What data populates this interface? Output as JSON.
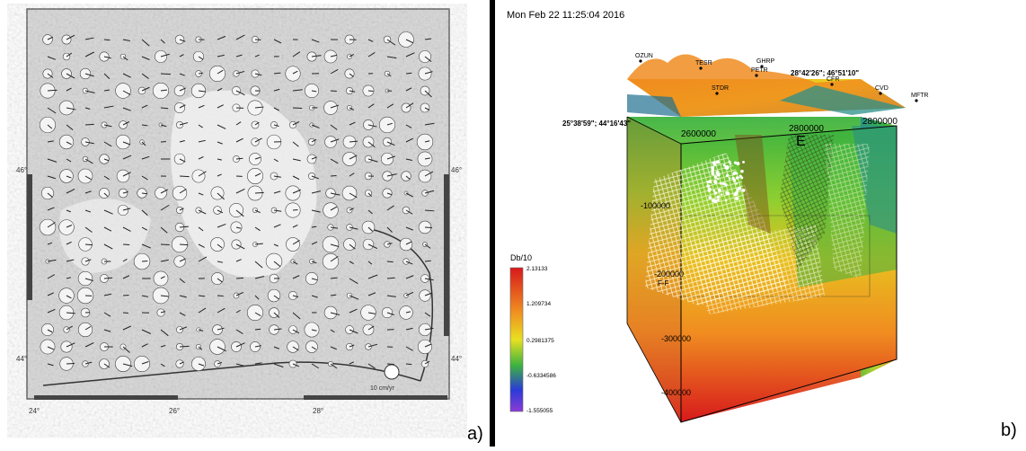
{
  "panel_a": {
    "letter": "a)",
    "lat_labels": [
      "46°",
      "46°",
      "44°",
      "44°"
    ],
    "lon_labels": [
      "24°",
      "26°",
      "28°"
    ],
    "scale_note": "10 cm/yr"
  },
  "panel_b": {
    "letter": "b)",
    "timestamp": "Mon Feb 22 11:25:04 2016",
    "stations": [
      "OZUN",
      "TESR",
      "GHRP",
      "PETR",
      "CFR",
      "CVD",
      "MFTR",
      "STDR"
    ],
    "corner_coord_right": "28°42'26\"; 46°51'10\"",
    "corner_coord_left": "25°38'59\"; 44°16'43\"",
    "axis_x": [
      "2600000",
      "2800000",
      "2800000"
    ],
    "depth_labels": [
      "-100000",
      "-200000",
      "-300000",
      "-400000"
    ],
    "letter_e": "E",
    "label_ff": "F-F",
    "colorbar": {
      "title": "Db/10",
      "ticks": [
        "2.13133",
        "1.209734",
        "0.2981375",
        "-0.6334586",
        "-1.555055"
      ]
    }
  },
  "colors": {
    "divider": "#000000",
    "grid_bg": "#d9d9d9",
    "red": "#d7191c",
    "orange": "#f08c20",
    "yellow": "#e8e020",
    "green": "#3cb340",
    "blue": "#2a3bd8",
    "purple": "#8b3bd6"
  }
}
